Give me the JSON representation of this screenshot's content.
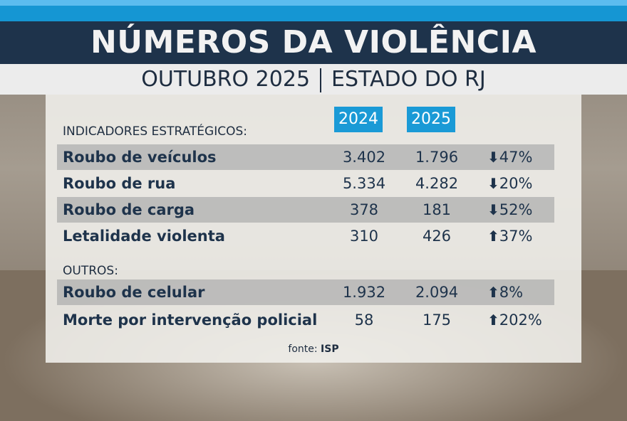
{
  "header": {
    "title": "NÚMEROS DA VIOLÊNCIA",
    "subtitle_left": "OUTUBRO 2025",
    "subtitle_right": "ESTADO DO RJ"
  },
  "columns": {
    "year1": "2024",
    "year2": "2025"
  },
  "sections": [
    {
      "label": "INDICADORES ESTRATÉGICOS:",
      "rows": [
        {
          "label": "Roubo de veículos",
          "v2024": "3.402",
          "v2025": "1.796",
          "direction": "down",
          "change": "47%"
        },
        {
          "label": "Roubo de rua",
          "v2024": "5.334",
          "v2025": "4.282",
          "direction": "down",
          "change": "20%"
        },
        {
          "label": "Roubo de carga",
          "v2024": "378",
          "v2025": "181",
          "direction": "down",
          "change": "52%"
        },
        {
          "label": "Letalidade violenta",
          "v2024": "310",
          "v2025": "426",
          "direction": "up",
          "change": "37%"
        }
      ]
    },
    {
      "label": "OUTROS:",
      "rows": [
        {
          "label": "Roubo de celular",
          "v2024": "1.932",
          "v2025": "2.094",
          "direction": "up",
          "change": "8%"
        },
        {
          "label": "Morte por intervenção policial",
          "v2024": "58",
          "v2025": "175",
          "direction": "up",
          "change": "202%"
        }
      ]
    }
  ],
  "source": {
    "prefix": "fonte:",
    "name": "ISP"
  },
  "icons": {
    "up": "arrow-up-icon",
    "down": "arrow-down-icon"
  },
  "colors": {
    "navy": "#1e334b",
    "blue": "#1a9ad6"
  }
}
